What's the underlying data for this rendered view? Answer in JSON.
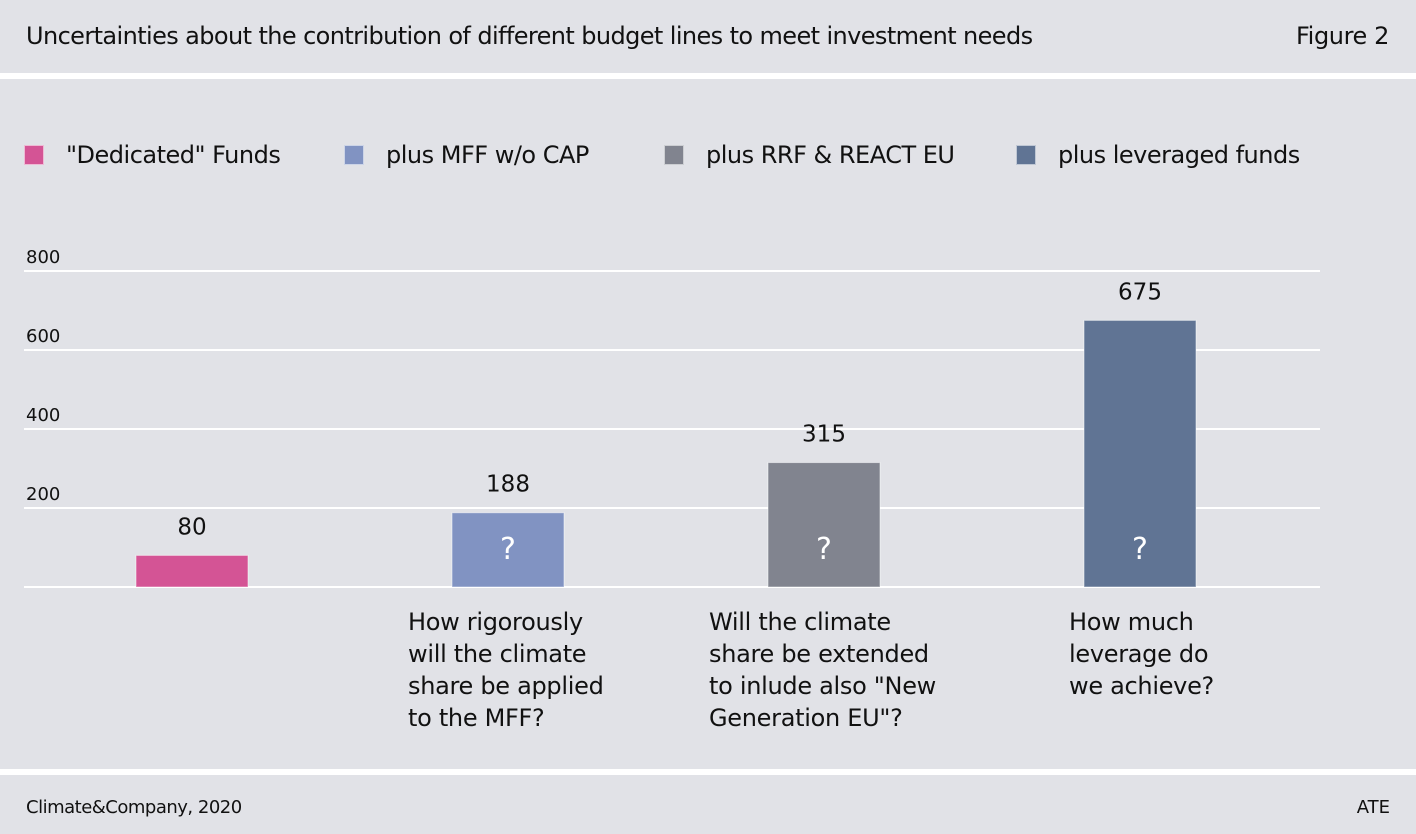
{
  "header": {
    "title": "Uncertainties about the contribution of different budget lines to meet investment needs",
    "figure_label": "Figure 2"
  },
  "footer": {
    "source": "Climate&Company, 2020",
    "right_label": "ATE"
  },
  "chart_data": {
    "type": "bar",
    "title": "Uncertainties about the contribution of different budget lines to meet investment needs",
    "xlabel": "",
    "ylabel": "",
    "ylim": [
      0,
      800
    ],
    "yticks": [
      0,
      200,
      400,
      600,
      800
    ],
    "ytick_labels": [
      "200",
      "400",
      "600",
      "800"
    ],
    "grid": true,
    "legend_position": "top",
    "categories": [
      "\"Dedicated\" Funds",
      "plus MFF w/o CAP",
      "plus RRF & REACT EU",
      "plus leveraged funds"
    ],
    "values": [
      80,
      188,
      315,
      675
    ],
    "value_labels": [
      "80",
      "188",
      "315",
      "675"
    ],
    "colors": [
      "#d45495",
      "#8193c2",
      "#81848f",
      "#607494"
    ],
    "legend": [
      {
        "label": "\"Dedicated\" Funds",
        "color": "#d45495"
      },
      {
        "label": "plus MFF w/o CAP",
        "color": "#8193c2"
      },
      {
        "label": "plus RRF & REACT EU",
        "color": "#81848f"
      },
      {
        "label": "plus leveraged funds",
        "color": "#607494"
      }
    ],
    "bar_marks": [
      "",
      "?",
      "?",
      "?"
    ],
    "annotations": [
      "",
      "How rigorously\nwill the climate\nshare be applied\nto the MFF?",
      "Will the climate\nshare be extended\nto inlude also \"New\nGeneration EU\"?",
      "How much\nleverage do\nwe achieve?"
    ]
  }
}
